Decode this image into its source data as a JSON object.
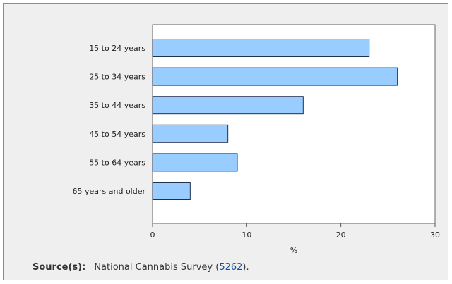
{
  "chart_data": {
    "type": "bar",
    "orientation": "horizontal",
    "categories": [
      "15 to 24 years",
      "25 to 34 years",
      "35 to 44 years",
      "45 to 54 years",
      "55 to 64 years",
      "65 years and older"
    ],
    "values": [
      23,
      26,
      16,
      8,
      9,
      4
    ],
    "xlabel": "%",
    "xlim": [
      0,
      30
    ],
    "xticks": [
      0,
      10,
      20,
      30
    ],
    "bar_color": "#99ccff",
    "bar_edge_color": "#1f3050",
    "grid": false,
    "legend": "none"
  },
  "source": {
    "label": "Source(s):",
    "text": "National Cannabis Survey (",
    "link": "5262",
    "suffix": ")."
  }
}
